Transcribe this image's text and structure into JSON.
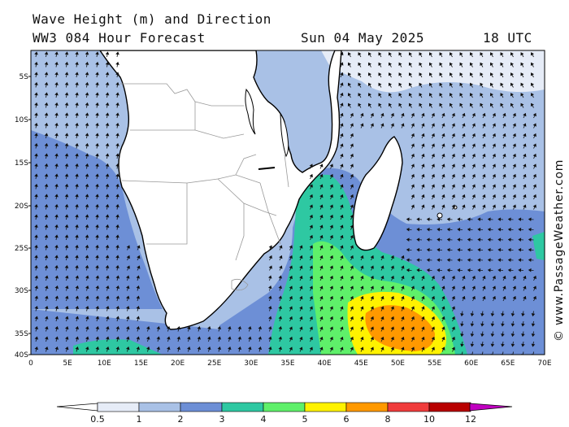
{
  "header": {
    "title": "Wave Height (m) and Direction",
    "model": "WW3 084 Hour Forecast",
    "date": "Sun 04 May 2025",
    "time": "18 UTC"
  },
  "watermark": "© www.PassageWeather.com",
  "axes": {
    "lat_labels": [
      "5S",
      "10S",
      "15S",
      "20S",
      "25S",
      "30S",
      "35S",
      "40S"
    ],
    "lon_labels": [
      "0",
      "5E",
      "10E",
      "15E",
      "20E",
      "25E",
      "30E",
      "35E",
      "40E",
      "45E",
      "50E",
      "55E",
      "60E",
      "65E",
      "70E"
    ]
  },
  "legend": {
    "ticks": [
      "0.5",
      "1",
      "2",
      "3",
      "4",
      "5",
      "6",
      "8",
      "10",
      "12"
    ],
    "colors": [
      "#e6ecf7",
      "#a9c1e6",
      "#6d8fd6",
      "#2ec8a2",
      "#5ff06a",
      "#fff200",
      "#ff9900",
      "#f03c3c",
      "#b80000",
      "#c000c0"
    ]
  },
  "colors": {
    "land": "#ffffff",
    "coast": "#000000",
    "border": "#999999",
    "sea_1_2": "#a9c1e6",
    "sea_2_3": "#6d8fd6",
    "sea_3_4": "#2ec8a2",
    "sea_4_5": "#5ff06a",
    "sea_5_6": "#fff200",
    "sea_6_8": "#ff9900",
    "sea_0_1": "#e6ecf7"
  }
}
